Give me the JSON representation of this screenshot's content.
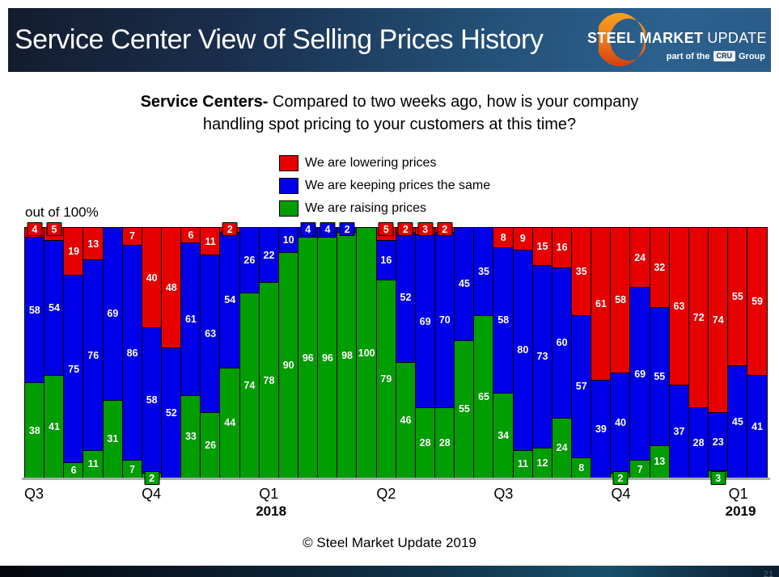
{
  "header": {
    "title": "Service Center View of Selling Prices History",
    "logo": {
      "word1": "STEEL",
      "word2": "MARKET",
      "word3": "UPDATE",
      "tagline_prefix": "part of the",
      "tagline_box": "CRU",
      "tagline_suffix": "Group"
    }
  },
  "question": {
    "bold": "Service Centers-",
    "line1_rest": " Compared to two weeks ago, how is your company",
    "line2": "handling spot pricing to your customers at this time?"
  },
  "chart_data": {
    "type": "bar",
    "stacked": true,
    "title": "Service Centers- Compared to two weeks ago, how is your company handling spot pricing to your customers at this time?",
    "axis_note": "out of 100%",
    "ylim": [
      0,
      100
    ],
    "grid": false,
    "legend_position": "top-center",
    "num_bars": 38,
    "small_value_threshold": 5,
    "label_color": "#FFFFFF",
    "series": [
      {
        "name": "We are raising prices",
        "color": "#009E00",
        "values": [
          38,
          41,
          6,
          11,
          31,
          7,
          2,
          0,
          33,
          26,
          44,
          74,
          78,
          90,
          96,
          96,
          98,
          100,
          79,
          46,
          28,
          28,
          55,
          65,
          34,
          11,
          12,
          24,
          8,
          0,
          2,
          7,
          13,
          0,
          0,
          3,
          0,
          0
        ]
      },
      {
        "name": "We are keeping prices the same",
        "color": "#0000E8",
        "values": [
          58,
          54,
          75,
          76,
          69,
          86,
          58,
          52,
          61,
          63,
          54,
          26,
          22,
          10,
          4,
          4,
          2,
          0,
          16,
          52,
          69,
          70,
          45,
          35,
          58,
          80,
          73,
          60,
          57,
          39,
          40,
          69,
          55,
          37,
          28,
          23,
          45,
          41
        ]
      },
      {
        "name": "We are lowering prices",
        "color": "#E60000",
        "values": [
          4,
          5,
          19,
          13,
          0,
          7,
          40,
          48,
          6,
          11,
          2,
          0,
          0,
          0,
          0,
          0,
          0,
          0,
          5,
          2,
          3,
          2,
          0,
          0,
          8,
          9,
          15,
          16,
          35,
          61,
          58,
          24,
          32,
          63,
          72,
          74,
          55,
          59
        ]
      }
    ],
    "x_axis": {
      "labels": [
        {
          "text": "Q3",
          "bar_index": 1
        },
        {
          "text": "Q4",
          "bar_index": 7
        },
        {
          "text": "Q1",
          "bar_index": 13,
          "year": "2018"
        },
        {
          "text": "Q2",
          "bar_index": 19
        },
        {
          "text": "Q3",
          "bar_index": 25
        },
        {
          "text": "Q4",
          "bar_index": 31
        },
        {
          "text": "Q1",
          "bar_index": 37,
          "year": "2019"
        }
      ]
    }
  },
  "footer": {
    "copyright": "© Steel Market Update 2019",
    "page_number": "21"
  }
}
